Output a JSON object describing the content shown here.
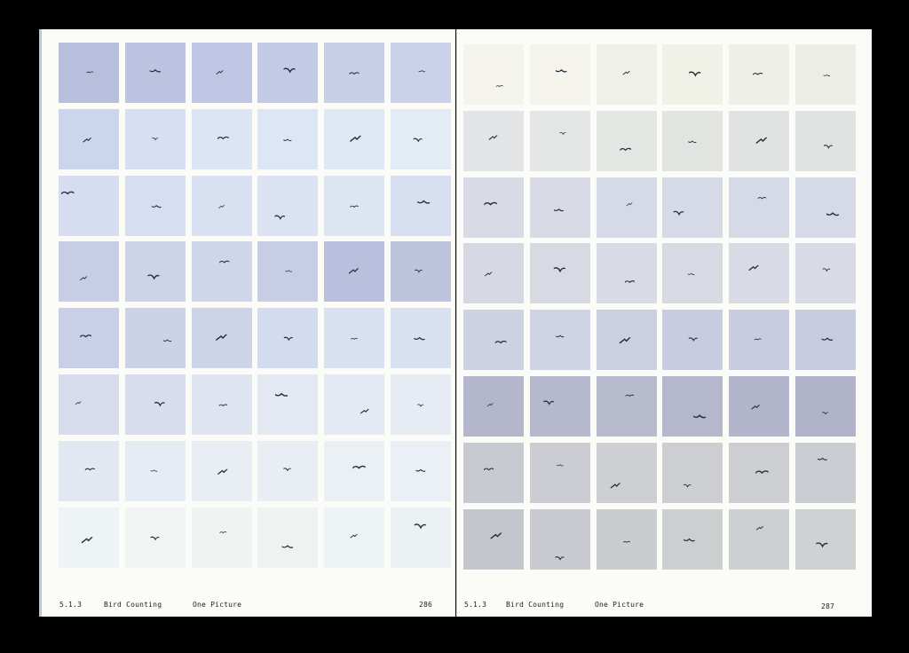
{
  "spread": {
    "left_page": {
      "section_number": "5.1.3",
      "section_title": "Bird Counting",
      "subtitle": "One Picture",
      "page_number": "286",
      "tile_colors": [
        [
          "#b8bfdd",
          "#bcc4e2",
          "#bec6e3",
          "#c3cae5",
          "#c7cee8",
          "#cbd1ea"
        ],
        [
          "#cbd6ee",
          "#d6e0f2",
          "#dbe5f4",
          "#dde6f4",
          "#dfe9f5",
          "#e3ebf5"
        ],
        [
          "#d6ddf0",
          "#d7def1",
          "#d9e0f1",
          "#dbe2f2",
          "#dde4f2",
          "#d8dff0"
        ],
        [
          "#c7cde6",
          "#cdd3e9",
          "#cfd6ea",
          "#c7cde6",
          "#b9bfdc",
          "#bec4de"
        ],
        [
          "#c9cfe6",
          "#ccd2e7",
          "#cdd4e7",
          "#d3dcee",
          "#d8e1f1",
          "#d8e1f0"
        ],
        [
          "#d6dcec",
          "#d8dded",
          "#dfe4f1",
          "#e4e8f2",
          "#e4e9f3",
          "#e6ebf4"
        ],
        [
          "#e2e8f1",
          "#e6ecf3",
          "#e9eef4",
          "#e9eef4",
          "#eaf0f4",
          "#eaf0f5"
        ],
        [
          "#eef3f5",
          "#f0f4f3",
          "#eff3f1",
          "#eef3f2",
          "#edf2f4",
          "#ecf1f4"
        ]
      ],
      "bird_offsets": [
        [
          [
            0.52,
            0.5
          ],
          [
            0.5,
            0.48
          ],
          [
            0.47,
            0.5
          ],
          [
            0.54,
            0.47
          ],
          [
            0.5,
            0.52
          ],
          [
            0.52,
            0.48
          ]
        ],
        [
          [
            0.48,
            0.52
          ],
          [
            0.5,
            0.5
          ],
          [
            0.52,
            0.49
          ],
          [
            0.5,
            0.52
          ],
          [
            0.53,
            0.5
          ],
          [
            0.46,
            0.52
          ]
        ],
        [
          [
            0.15,
            0.3
          ],
          [
            0.52,
            0.52
          ],
          [
            0.5,
            0.52
          ],
          [
            0.38,
            0.7
          ],
          [
            0.5,
            0.52
          ],
          [
            0.55,
            0.45
          ]
        ],
        [
          [
            0.42,
            0.62
          ],
          [
            0.48,
            0.6
          ],
          [
            0.54,
            0.35
          ],
          [
            0.52,
            0.5
          ],
          [
            0.5,
            0.5
          ],
          [
            0.47,
            0.5
          ]
        ],
        [
          [
            0.45,
            0.48
          ],
          [
            0.7,
            0.55
          ],
          [
            0.5,
            0.5
          ],
          [
            0.52,
            0.52
          ],
          [
            0.5,
            0.52
          ],
          [
            0.48,
            0.52
          ]
        ],
        [
          [
            0.33,
            0.48
          ],
          [
            0.58,
            0.5
          ],
          [
            0.52,
            0.52
          ],
          [
            0.4,
            0.35
          ],
          [
            0.68,
            0.62
          ],
          [
            0.5,
            0.52
          ]
        ],
        [
          [
            0.52,
            0.48
          ],
          [
            0.48,
            0.5
          ],
          [
            0.52,
            0.52
          ],
          [
            0.5,
            0.48
          ],
          [
            0.58,
            0.45
          ],
          [
            0.5,
            0.5
          ]
        ],
        [
          [
            0.48,
            0.55
          ],
          [
            0.5,
            0.52
          ],
          [
            0.52,
            0.42
          ],
          [
            0.5,
            0.66
          ],
          [
            0.5,
            0.48
          ],
          [
            0.5,
            0.32
          ]
        ]
      ]
    },
    "right_page": {
      "section_number": "5.1.3",
      "section_title": "Bird Counting",
      "subtitle": "One Picture",
      "page_number": "287",
      "tile_colors": [
        [
          "#f4f4ec",
          "#f4f4ec",
          "#eff1e8",
          "#f0f2e8",
          "#eef0e8",
          "#eceee6"
        ],
        [
          "#e2e4e6",
          "#e4e6e6",
          "#e4e6e4",
          "#e2e4e2",
          "#e0e3e2",
          "#e1e3e2"
        ],
        [
          "#d8dae6",
          "#d8dae6",
          "#d6d9e6",
          "#d6d9e6",
          "#d6d9e6",
          "#d6dae6"
        ],
        [
          "#d6d8e3",
          "#d7d9e3",
          "#d8dae5",
          "#d8dae3",
          "#d8dae5",
          "#d8dae5"
        ],
        [
          "#cdd2e3",
          "#cfd3e3",
          "#cbcfe0",
          "#c8cce0",
          "#c8cce0",
          "#c8cce0"
        ],
        [
          "#b4b6cb",
          "#b6b8cd",
          "#b8bacd",
          "#b5b8cc",
          "#b3b5cc",
          "#b1b3cb"
        ],
        [
          "#c8cad2",
          "#cbcdd2",
          "#cdcfd2",
          "#ccced2",
          "#ccced2",
          "#cacdd2"
        ],
        [
          "#c4c6cd",
          "#c8cad0",
          "#cacdd0",
          "#cccfd0",
          "#cdd0d0",
          "#cfd1d2"
        ]
      ],
      "bird_offsets": [
        [
          [
            0.6,
            0.7
          ],
          [
            0.52,
            0.45
          ],
          [
            0.5,
            0.48
          ],
          [
            0.55,
            0.5
          ],
          [
            0.48,
            0.5
          ],
          [
            0.52,
            0.52
          ]
        ],
        [
          [
            0.5,
            0.45
          ],
          [
            0.55,
            0.38
          ],
          [
            0.48,
            0.65
          ],
          [
            0.5,
            0.52
          ],
          [
            0.55,
            0.5
          ],
          [
            0.55,
            0.6
          ]
        ],
        [
          [
            0.45,
            0.45
          ],
          [
            0.48,
            0.55
          ],
          [
            0.55,
            0.45
          ],
          [
            0.28,
            0.6
          ],
          [
            0.55,
            0.35
          ],
          [
            0.62,
            0.62
          ]
        ],
        [
          [
            0.42,
            0.52
          ],
          [
            0.5,
            0.45
          ],
          [
            0.55,
            0.65
          ],
          [
            0.48,
            0.52
          ],
          [
            0.42,
            0.42
          ],
          [
            0.52,
            0.45
          ]
        ],
        [
          [
            0.62,
            0.55
          ],
          [
            0.5,
            0.45
          ],
          [
            0.48,
            0.52
          ],
          [
            0.52,
            0.5
          ],
          [
            0.48,
            0.5
          ],
          [
            0.53,
            0.5
          ]
        ],
        [
          [
            0.45,
            0.48
          ],
          [
            0.32,
            0.45
          ],
          [
            0.55,
            0.33
          ],
          [
            0.62,
            0.68
          ],
          [
            0.45,
            0.52
          ],
          [
            0.5,
            0.62
          ]
        ],
        [
          [
            0.42,
            0.45
          ],
          [
            0.5,
            0.38
          ],
          [
            0.32,
            0.72
          ],
          [
            0.42,
            0.72
          ],
          [
            0.55,
            0.5
          ],
          [
            0.45,
            0.28
          ]
        ],
        [
          [
            0.55,
            0.45
          ],
          [
            0.5,
            0.82
          ],
          [
            0.5,
            0.55
          ],
          [
            0.45,
            0.52
          ],
          [
            0.52,
            0.32
          ],
          [
            0.45,
            0.6
          ]
        ]
      ]
    }
  },
  "colors": {
    "paper": "#fbfbf8",
    "background": "#000000",
    "bird": "#2a2c38",
    "text": "#222222"
  }
}
